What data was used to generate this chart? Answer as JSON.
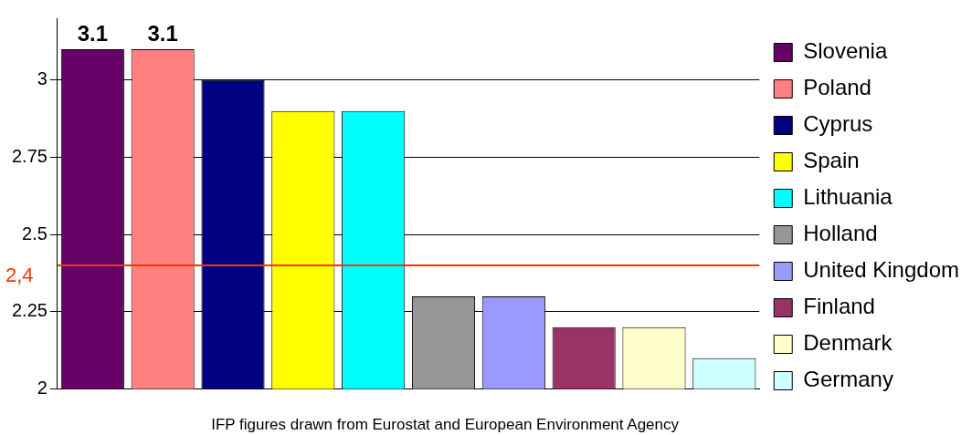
{
  "chart_data": {
    "type": "bar",
    "categories": [
      null
    ],
    "series": [
      {
        "name": "Slovenia",
        "color": "#660066",
        "values": [
          3.1
        ],
        "value_labels": [
          "3.1"
        ]
      },
      {
        "name": "Poland",
        "color": "#ff8080",
        "values": [
          3.1
        ],
        "value_labels": [
          "3.1"
        ]
      },
      {
        "name": "Cyprus",
        "color": "#000080",
        "values": [
          3.0
        ]
      },
      {
        "name": "Spain",
        "color": "#ffff00",
        "values": [
          2.9
        ]
      },
      {
        "name": "Lithuania",
        "color": "#00ffff",
        "values": [
          2.9
        ]
      },
      {
        "name": "Holland",
        "color": "#969696",
        "values": [
          2.3
        ]
      },
      {
        "name": "United Kingdom",
        "color": "#9999ff",
        "values": [
          2.3
        ]
      },
      {
        "name": "Finland",
        "color": "#993366",
        "values": [
          2.2
        ]
      },
      {
        "name": "Denmark",
        "color": "#ffffcc",
        "values": [
          2.2
        ]
      },
      {
        "name": "Germany",
        "color": "#ccffff",
        "values": [
          2.1
        ]
      }
    ],
    "ylim": [
      2,
      3.2
    ],
    "yticks": [
      2,
      2.25,
      2.5,
      2.75,
      3
    ],
    "grid": "y",
    "legend": "right",
    "ref_lines": [
      {
        "axis": "y",
        "value": 2.4,
        "label": "2,4",
        "color": "#ff3300"
      }
    ],
    "annotations": [
      "IFP figures drawn from Eurostat and European Environment Agency"
    ]
  }
}
